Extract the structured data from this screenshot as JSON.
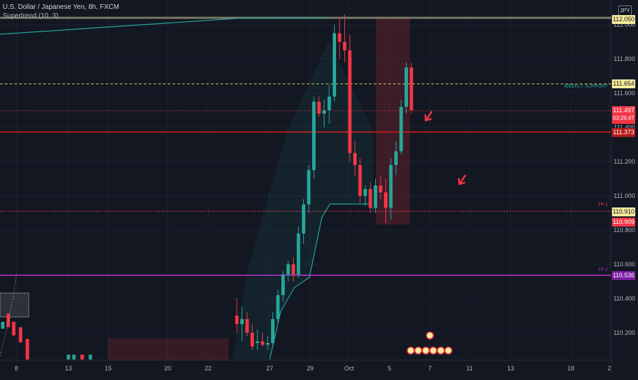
{
  "header": {
    "title": "U.S. Dollar / Japanese Yen, 8h, FXCM",
    "indicator": "Supertrend (10, 3)"
  },
  "axis": {
    "currency": "JPY",
    "y_ticks": [
      "112.000",
      "111.800",
      "111.600",
      "111.400",
      "111.200",
      "111.000",
      "110.800",
      "110.600",
      "110.400",
      "110.200"
    ],
    "x_ticks": [
      "8",
      "13",
      "15",
      "20",
      "22",
      "27",
      "29",
      "Oct",
      "5",
      "7",
      "11",
      "13",
      "18",
      "2"
    ]
  },
  "levels": {
    "weekly_support": {
      "label": "WEEKLY SUPPORT",
      "value": "111.654",
      "color": "#d4c94d"
    },
    "current": {
      "value": "111.497",
      "countdown": "03:26:47",
      "color": "#f23645"
    },
    "support_red": {
      "value": "111.373",
      "color": "#b71c1c"
    },
    "tp1": {
      "label": "TP 1",
      "value": "110.910",
      "bid": "110.909",
      "color": "#f23645"
    },
    "tp2": {
      "label": "TP 2",
      "value": "110.536",
      "color": "#9c27b0"
    },
    "top": {
      "value": "112.050"
    }
  },
  "chart_data": {
    "type": "candlestick",
    "title": "U.S. Dollar / Japanese Yen, 8h, FXCM",
    "ylim": [
      110.1,
      112.06
    ],
    "y_ticks": [
      112.0,
      111.8,
      111.6,
      111.4,
      111.2,
      111.0,
      110.8,
      110.6,
      110.4,
      110.2
    ],
    "x_ticks": [
      "8",
      "13",
      "15",
      "20",
      "22",
      "27",
      "29",
      "Oct",
      "5",
      "7",
      "11",
      "13",
      "18",
      "2"
    ],
    "candles": [
      {
        "o": 110.3,
        "h": 110.4,
        "l": 110.2,
        "c": 110.25
      },
      {
        "o": 110.25,
        "h": 110.35,
        "l": 110.15,
        "c": 110.28
      },
      {
        "o": 110.28,
        "h": 110.32,
        "l": 110.18,
        "c": 110.2
      },
      {
        "o": 110.2,
        "h": 110.25,
        "l": 110.1,
        "c": 110.12
      },
      {
        "o": 110.14,
        "h": 110.22,
        "l": 110.1,
        "c": 110.15
      },
      {
        "o": 110.15,
        "h": 110.2,
        "l": 110.12,
        "c": 110.13
      },
      {
        "o": 110.13,
        "h": 110.18,
        "l": 110.1,
        "c": 110.14
      },
      {
        "o": 110.14,
        "h": 110.32,
        "l": 110.12,
        "c": 110.28
      },
      {
        "o": 110.28,
        "h": 110.45,
        "l": 110.25,
        "c": 110.42
      },
      {
        "o": 110.42,
        "h": 110.56,
        "l": 110.38,
        "c": 110.54
      },
      {
        "o": 110.54,
        "h": 110.62,
        "l": 110.5,
        "c": 110.6
      },
      {
        "o": 110.6,
        "h": 110.64,
        "l": 110.5,
        "c": 110.54
      },
      {
        "o": 110.54,
        "h": 110.82,
        "l": 110.52,
        "c": 110.78
      },
      {
        "o": 110.78,
        "h": 110.98,
        "l": 110.72,
        "c": 110.95
      },
      {
        "o": 110.95,
        "h": 111.18,
        "l": 110.9,
        "c": 111.15
      },
      {
        "o": 111.15,
        "h": 111.58,
        "l": 111.1,
        "c": 111.55
      },
      {
        "o": 111.55,
        "h": 111.58,
        "l": 111.46,
        "c": 111.48
      },
      {
        "o": 111.48,
        "h": 111.56,
        "l": 111.4,
        "c": 111.5
      },
      {
        "o": 111.5,
        "h": 111.65,
        "l": 111.42,
        "c": 111.58
      },
      {
        "o": 111.58,
        "h": 112.0,
        "l": 111.55,
        "c": 111.95
      },
      {
        "o": 111.95,
        "h": 112.04,
        "l": 111.8,
        "c": 111.9
      },
      {
        "o": 111.9,
        "h": 112.06,
        "l": 111.78,
        "c": 111.85
      },
      {
        "o": 111.85,
        "h": 111.94,
        "l": 111.2,
        "c": 111.25
      },
      {
        "o": 111.25,
        "h": 111.32,
        "l": 111.12,
        "c": 111.18
      },
      {
        "o": 111.18,
        "h": 111.22,
        "l": 110.96,
        "c": 111.0
      },
      {
        "o": 111.0,
        "h": 111.06,
        "l": 110.94,
        "c": 111.04
      },
      {
        "o": 111.04,
        "h": 111.08,
        "l": 110.9,
        "c": 110.93
      },
      {
        "o": 110.93,
        "h": 111.1,
        "l": 110.9,
        "c": 111.06
      },
      {
        "o": 111.06,
        "h": 111.12,
        "l": 110.98,
        "c": 111.02
      },
      {
        "o": 111.02,
        "h": 111.1,
        "l": 110.84,
        "c": 110.93
      },
      {
        "o": 110.93,
        "h": 111.22,
        "l": 110.86,
        "c": 111.18
      },
      {
        "o": 111.18,
        "h": 111.32,
        "l": 111.12,
        "c": 111.26
      },
      {
        "o": 111.26,
        "h": 111.56,
        "l": 111.24,
        "c": 111.52
      },
      {
        "o": 111.52,
        "h": 111.78,
        "l": 111.48,
        "c": 111.75
      },
      {
        "o": 111.75,
        "h": 111.78,
        "l": 111.48,
        "c": 111.5
      }
    ],
    "supertrend": [
      {
        "i": 0,
        "v": 110.13
      },
      {
        "i": 5,
        "v": 110.13
      },
      {
        "i": 12,
        "v": 110.35
      },
      {
        "i": 15,
        "v": 110.52
      },
      {
        "i": 17,
        "v": 110.52
      },
      {
        "i": 19,
        "v": 110.9
      },
      {
        "i": 24,
        "v": 110.94
      },
      {
        "i": 29,
        "v": 110.94
      }
    ]
  }
}
